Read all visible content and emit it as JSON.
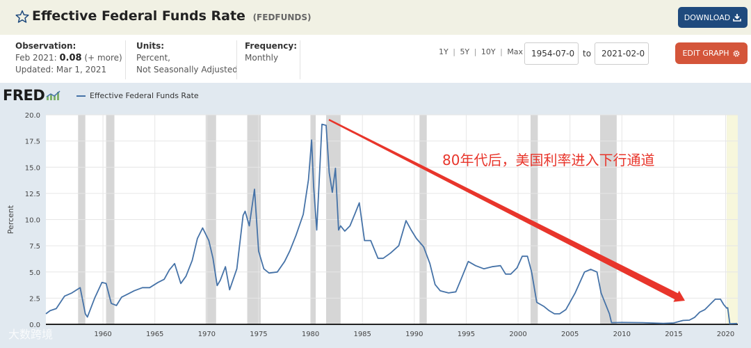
{
  "header": {
    "title": "Effective Federal Funds Rate",
    "series_id": "(FEDFUNDS)",
    "download_label": "DOWNLOAD"
  },
  "meta": {
    "observation_label": "Observation:",
    "observation_date": "Feb 2021:",
    "observation_value": "0.08",
    "observation_more": "(+ more)",
    "updated": "Updated: Mar 1, 2021",
    "units_label": "Units:",
    "units_line1": "Percent,",
    "units_line2": "Not Seasonally Adjusted",
    "frequency_label": "Frequency:",
    "frequency_value": "Monthly"
  },
  "controls": {
    "range_1y": "1Y",
    "range_5y": "5Y",
    "range_10y": "10Y",
    "range_max": "Max",
    "separator": "|",
    "start_date": "1954-07-0",
    "to_label": "to",
    "end_date": "2021-02-0",
    "edit_label": "EDIT GRAPH"
  },
  "branding": {
    "logo": "FRED",
    "watermark": "大数跨境"
  },
  "annotation": {
    "text": "80年代后，美国利率进入下行通道",
    "color": "#e8352b"
  },
  "colors": {
    "line": "#4572a7",
    "recession": "#d6d6d6",
    "plot_bg": "#ffffff",
    "chart_bg": "#e1e9f0",
    "arrow": "#e8352b"
  },
  "chart_data": {
    "type": "line",
    "title": "",
    "xlabel": "",
    "ylabel": "Percent",
    "xlim": [
      1954.5,
      2021.17
    ],
    "ylim": [
      0,
      20
    ],
    "yticks": [
      "0.0",
      "2.5",
      "5.0",
      "7.5",
      "10.0",
      "12.5",
      "15.0",
      "17.5",
      "20.0"
    ],
    "xticks": [
      "1960",
      "1965",
      "1970",
      "1975",
      "1980",
      "1985",
      "1990",
      "1995",
      "2000",
      "2005",
      "2010",
      "2015",
      "2020"
    ],
    "grid": true,
    "legend": "top-left",
    "series": [
      {
        "name": "Effective Federal Funds Rate",
        "x": [
          1954.5,
          1954.9,
          1955.5,
          1956.3,
          1957.0,
          1957.8,
          1958.3,
          1958.5,
          1959.2,
          1959.9,
          1960.3,
          1960.8,
          1961.3,
          1961.8,
          1962.4,
          1963.0,
          1963.8,
          1964.5,
          1965.3,
          1965.9,
          1966.4,
          1966.9,
          1967.5,
          1968.0,
          1968.6,
          1969.1,
          1969.6,
          1970.2,
          1970.6,
          1971.0,
          1971.3,
          1971.8,
          1972.2,
          1972.9,
          1973.5,
          1973.7,
          1974.1,
          1974.6,
          1975.0,
          1975.5,
          1976.0,
          1976.8,
          1977.5,
          1978.0,
          1978.6,
          1979.3,
          1979.8,
          1980.1,
          1980.3,
          1980.6,
          1980.9,
          1981.1,
          1981.5,
          1981.8,
          1982.1,
          1982.4,
          1982.7,
          1982.9,
          1983.3,
          1983.8,
          1984.3,
          1984.7,
          1985.2,
          1985.8,
          1986.5,
          1987.0,
          1987.7,
          1988.5,
          1989.2,
          1989.7,
          1990.2,
          1990.9,
          1991.5,
          1992.0,
          1992.5,
          1993.3,
          1994.0,
          1994.5,
          1995.2,
          1995.9,
          1996.7,
          1997.5,
          1998.3,
          1998.8,
          1999.3,
          1999.9,
          2000.4,
          2000.9,
          2001.3,
          2001.8,
          2002.5,
          2003.0,
          2003.5,
          2004.0,
          2004.6,
          2005.5,
          2006.4,
          2007.0,
          2007.6,
          2008.0,
          2008.4,
          2008.8,
          2009.0,
          2010.0,
          2012.0,
          2014.0,
          2015.0,
          2015.9,
          2016.5,
          2017.0,
          2017.5,
          2018.0,
          2018.5,
          2019.0,
          2019.5,
          2019.8,
          2020.1,
          2020.2,
          2020.4,
          2021.1
        ],
        "values": [
          1.0,
          1.3,
          1.5,
          2.7,
          3.0,
          3.5,
          1.0,
          0.7,
          2.5,
          4.0,
          3.9,
          2.0,
          1.8,
          2.6,
          2.9,
          3.2,
          3.5,
          3.5,
          4.0,
          4.3,
          5.2,
          5.8,
          3.9,
          4.6,
          6.1,
          8.2,
          9.2,
          8.0,
          6.3,
          3.7,
          4.2,
          5.5,
          3.3,
          5.3,
          10.4,
          10.8,
          9.4,
          12.9,
          7.0,
          5.3,
          4.9,
          5.0,
          6.0,
          7.0,
          8.5,
          10.5,
          13.8,
          17.6,
          13.2,
          9.0,
          15.0,
          19.1,
          19.0,
          14.5,
          12.6,
          14.9,
          9.0,
          9.4,
          8.9,
          9.4,
          10.6,
          11.6,
          8.0,
          8.0,
          6.3,
          6.3,
          6.8,
          7.5,
          9.9,
          9.0,
          8.2,
          7.4,
          5.8,
          3.8,
          3.2,
          3.0,
          3.1,
          4.3,
          6.0,
          5.6,
          5.3,
          5.5,
          5.6,
          4.8,
          4.8,
          5.4,
          6.5,
          6.5,
          5.0,
          2.1,
          1.7,
          1.3,
          1.0,
          1.0,
          1.4,
          3.0,
          5.0,
          5.25,
          5.0,
          3.0,
          2.0,
          1.0,
          0.16,
          0.18,
          0.16,
          0.09,
          0.13,
          0.37,
          0.4,
          0.66,
          1.16,
          1.41,
          1.91,
          2.4,
          2.4,
          1.9,
          1.55,
          1.58,
          0.05,
          0.08
        ]
      }
    ],
    "recessions": [
      [
        1957.6,
        1958.3
      ],
      [
        1960.3,
        1961.1
      ],
      [
        1969.9,
        1970.9
      ],
      [
        1973.9,
        1975.2
      ],
      [
        1980.0,
        1980.5
      ],
      [
        1981.5,
        1982.9
      ],
      [
        1990.5,
        1991.2
      ],
      [
        2001.2,
        2001.9
      ],
      [
        2007.9,
        2009.5
      ],
      [
        2020.1,
        2021.17
      ]
    ]
  }
}
